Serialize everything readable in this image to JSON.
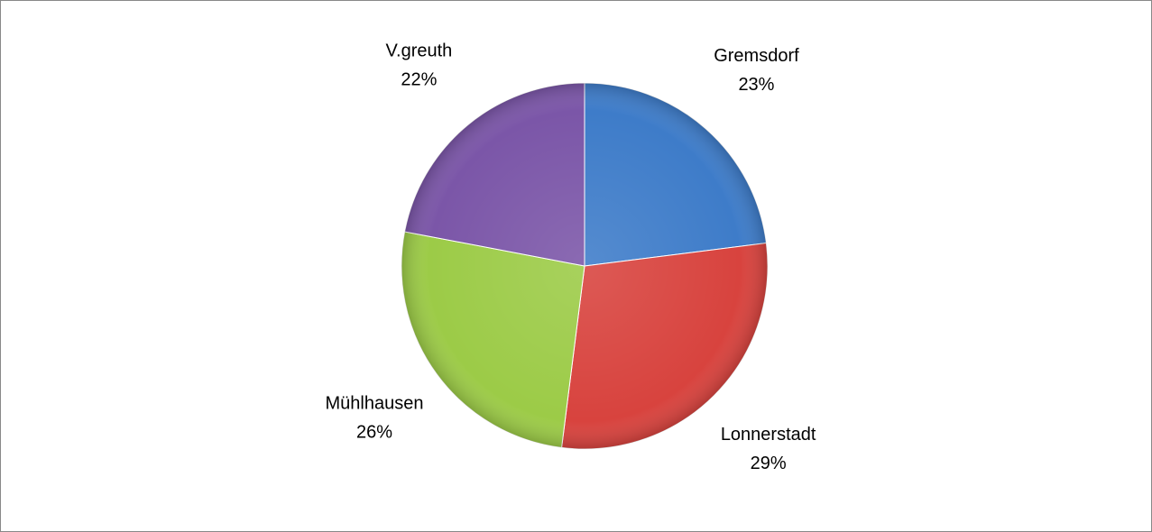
{
  "chart_data": {
    "type": "pie",
    "categories": [
      "Gremsdorf",
      "Lonnerstadt",
      "Mühlhausen",
      "V.greuth"
    ],
    "values": [
      23,
      29,
      26,
      22
    ],
    "value_labels": [
      "23%",
      "29%",
      "26%",
      "22%"
    ],
    "colors": [
      "#3e7cc9",
      "#d8433e",
      "#9ccb47",
      "#7b56a8"
    ]
  }
}
